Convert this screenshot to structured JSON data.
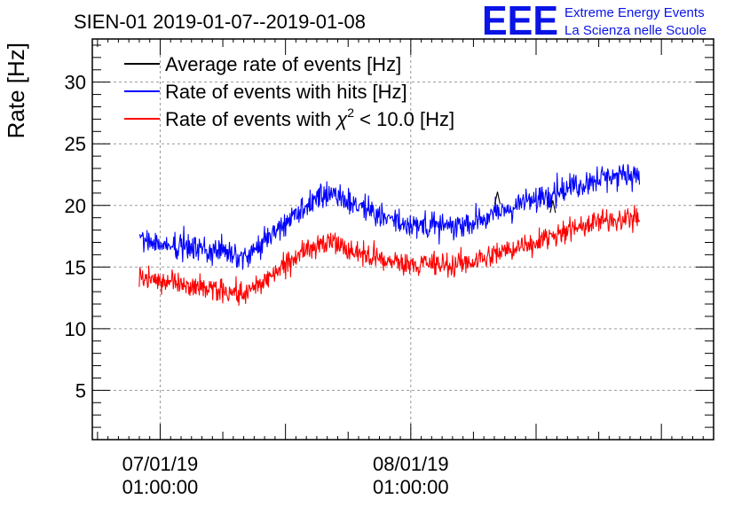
{
  "chart_data": {
    "type": "line",
    "title": "SIEN-01 2019-01-07--2019-01-08",
    "ylabel": "Rate [Hz]",
    "xlabel": "",
    "ylim": [
      1,
      33.5
    ],
    "yticks": [
      5,
      10,
      15,
      20,
      25,
      30
    ],
    "x_unit": "hours since 2019-01-07 00:00",
    "xlim": [
      -5.5,
      54.0
    ],
    "xticks": [
      {
        "x": 1.0,
        "label": [
          "07/01/19",
          "01:00:00"
        ]
      },
      {
        "x": 25.0,
        "label": [
          "08/01/19",
          "01:00:00"
        ]
      }
    ],
    "grid": true,
    "legend_position": "top-left",
    "legend": [
      {
        "name": "Average rate of events [Hz]",
        "color": "#000000"
      },
      {
        "name": "Rate of events with hits [Hz]",
        "color": "#0000ff"
      },
      {
        "name_prefix": "Rate of events with ",
        "name_symbol": "χ",
        "name_sup": "2",
        "name_suffix": " < 10.0 [Hz]",
        "color": "#ff0000"
      }
    ],
    "series": [
      {
        "name": "Rate of events with hits [Hz]",
        "color": "#0000ff",
        "noise": 0.55,
        "x": [
          -1.0,
          1,
          3,
          5,
          7,
          9,
          11,
          13,
          15,
          17,
          19,
          21,
          23,
          25,
          27,
          29,
          31,
          33,
          35,
          37,
          39,
          41,
          43,
          45,
          46.9
        ],
        "values": [
          17.2,
          16.9,
          16.7,
          16.5,
          16.2,
          16.0,
          17.0,
          18.6,
          20.0,
          21.0,
          20.4,
          19.6,
          18.9,
          18.5,
          18.3,
          18.2,
          18.6,
          19.2,
          19.9,
          20.5,
          21.2,
          21.7,
          22.2,
          22.4,
          22.6
        ]
      },
      {
        "name": "Rate of events with chi2 < 10.0 [Hz]",
        "color": "#ff0000",
        "noise": 0.5,
        "x": [
          -1.0,
          1,
          3,
          5,
          7,
          9,
          11,
          13,
          15,
          17,
          19,
          21,
          23,
          25,
          27,
          29,
          31,
          33,
          35,
          37,
          39,
          41,
          43,
          45,
          46.9
        ],
        "values": [
          14.1,
          13.8,
          13.5,
          13.3,
          13.0,
          12.9,
          13.8,
          15.2,
          16.6,
          17.1,
          16.4,
          15.9,
          15.4,
          15.3,
          15.2,
          15.1,
          15.4,
          15.9,
          16.5,
          17.1,
          17.7,
          18.2,
          18.7,
          18.9,
          19.0
        ]
      }
    ],
    "anomalies": [
      {
        "series": 0,
        "x": 33.3,
        "value": 20.6
      },
      {
        "series": 0,
        "x": 38.6,
        "value": 19.9
      }
    ]
  },
  "logo": {
    "mark": "EEE",
    "line1": "Extreme Energy Events",
    "line2": "La Scienza nelle Scuole",
    "color": "#0a14e6"
  }
}
